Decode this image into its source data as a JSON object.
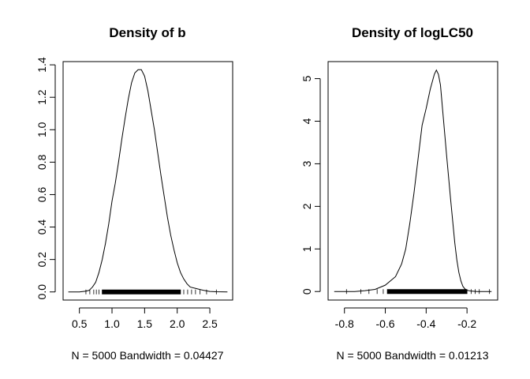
{
  "chart_data": [
    {
      "type": "line",
      "title": "Density of b",
      "xlabel": "N = 5000   Bandwidth = 0.04427",
      "ylabel": "",
      "xlim": [
        0.25,
        2.85
      ],
      "ylim": [
        -0.05,
        1.42
      ],
      "x_ticks": [
        0.5,
        1.0,
        1.5,
        2.0,
        2.5
      ],
      "x_tick_labels": [
        "0.5",
        "1.0",
        "1.5",
        "2.0",
        "2.5"
      ],
      "y_ticks": [
        0.0,
        0.2,
        0.4,
        0.6,
        0.8,
        1.0,
        1.2,
        1.4
      ],
      "y_tick_labels": [
        "0.0",
        "0.2",
        "0.4",
        "0.6",
        "0.8",
        "1.0",
        "1.2",
        "1.4"
      ],
      "grid": false,
      "series": [
        {
          "x": [
            0.33,
            0.5,
            0.6,
            0.65,
            0.7,
            0.75,
            0.8,
            0.85,
            0.9,
            0.95,
            1.0,
            1.05,
            1.1,
            1.15,
            1.2,
            1.25,
            1.3,
            1.35,
            1.4,
            1.45,
            1.5,
            1.55,
            1.6,
            1.65,
            1.7,
            1.75,
            1.8,
            1.85,
            1.9,
            1.95,
            2.0,
            2.05,
            2.1,
            2.15,
            2.2,
            2.3,
            2.4,
            2.5,
            2.6,
            2.77
          ],
          "y": [
            0.0,
            0.0,
            0.005,
            0.01,
            0.03,
            0.06,
            0.12,
            0.2,
            0.3,
            0.42,
            0.56,
            0.67,
            0.8,
            0.94,
            1.07,
            1.19,
            1.29,
            1.35,
            1.37,
            1.37,
            1.33,
            1.24,
            1.12,
            1.0,
            0.86,
            0.72,
            0.59,
            0.46,
            0.35,
            0.26,
            0.18,
            0.12,
            0.08,
            0.05,
            0.03,
            0.02,
            0.01,
            0.003,
            0.001,
            0.0
          ]
        }
      ],
      "rug": {
        "range": [
          0.6,
          2.6
        ],
        "dense_range": [
          0.85,
          2.05
        ],
        "sparse_points": [
          0.6,
          0.66,
          0.72,
          0.76,
          0.8,
          2.1,
          2.16,
          2.22,
          2.28,
          2.35,
          2.45,
          2.6
        ]
      }
    },
    {
      "type": "line",
      "title": "Density of logLC50",
      "xlabel": "N = 5000   Bandwidth = 0.01213",
      "ylabel": "",
      "xlim": [
        -0.88,
        -0.05
      ],
      "ylim": [
        -0.2,
        5.4
      ],
      "x_ticks": [
        -0.8,
        -0.6,
        -0.4,
        -0.2
      ],
      "x_tick_labels": [
        "-0.8",
        "-0.6",
        "-0.4",
        "-0.2"
      ],
      "y_ticks": [
        0,
        1,
        2,
        3,
        4,
        5
      ],
      "y_tick_labels": [
        "0",
        "1",
        "2",
        "3",
        "4",
        "5"
      ],
      "grid": false,
      "series": [
        {
          "x": [
            -0.85,
            -0.75,
            -0.7,
            -0.65,
            -0.6,
            -0.55,
            -0.52,
            -0.5,
            -0.48,
            -0.46,
            -0.44,
            -0.42,
            -0.4,
            -0.38,
            -0.36,
            -0.35,
            -0.34,
            -0.33,
            -0.32,
            -0.3,
            -0.28,
            -0.26,
            -0.25,
            -0.24,
            -0.23,
            -0.22,
            -0.21,
            -0.2,
            -0.18,
            -0.15,
            -0.08
          ],
          "y": [
            0.0,
            0.0,
            0.02,
            0.05,
            0.15,
            0.35,
            0.65,
            1.0,
            1.6,
            2.3,
            3.1,
            3.9,
            4.3,
            4.75,
            5.1,
            5.2,
            5.1,
            4.85,
            4.3,
            3.2,
            2.15,
            1.15,
            0.75,
            0.45,
            0.25,
            0.12,
            0.06,
            0.03,
            0.01,
            0.0,
            0.0
          ]
        }
      ],
      "rug": {
        "range": [
          -0.79,
          -0.09
        ],
        "dense_range": [
          -0.59,
          -0.2
        ],
        "sparse_points": [
          -0.79,
          -0.72,
          -0.68,
          -0.64,
          -0.61,
          -0.18,
          -0.16,
          -0.14,
          -0.09
        ]
      }
    }
  ]
}
